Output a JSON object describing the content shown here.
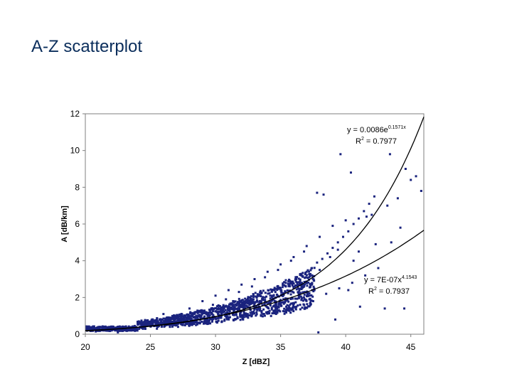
{
  "slide": {
    "title": "A-Z scatterplot"
  },
  "chart_data": {
    "type": "scatter",
    "title": "",
    "xlabel": "Z [dBZ]",
    "ylabel": "A [dB/km]",
    "xlim": [
      20,
      46
    ],
    "ylim": [
      0,
      12
    ],
    "x_ticks": [
      "20",
      "25",
      "30",
      "35",
      "40",
      "45"
    ],
    "y_ticks": [
      "0",
      "2",
      "4",
      "6",
      "8",
      "10",
      "12"
    ],
    "grid": false,
    "colors": {
      "points": "#1a237e",
      "trendlines": "#000000",
      "frame": "#7f7f7f"
    },
    "series": [
      {
        "values": [
          [
            20.3,
            0.25
          ],
          [
            20.6,
            0.3
          ],
          [
            21.0,
            0.25
          ],
          [
            21.4,
            0.3
          ],
          [
            21.8,
            0.28
          ],
          [
            22.2,
            0.35
          ],
          [
            22.6,
            0.3
          ],
          [
            23.0,
            0.4
          ],
          [
            23.4,
            0.35
          ],
          [
            23.8,
            0.45
          ],
          [
            24.2,
            0.4
          ],
          [
            24.6,
            0.5
          ],
          [
            25.0,
            0.45
          ],
          [
            25.4,
            0.55
          ],
          [
            25.8,
            0.6
          ],
          [
            26.2,
            0.55
          ],
          [
            26.6,
            0.65
          ],
          [
            27.0,
            0.7
          ],
          [
            27.4,
            0.65
          ],
          [
            27.8,
            0.8
          ],
          [
            28.2,
            0.75
          ],
          [
            28.6,
            0.9
          ],
          [
            29.0,
            0.85
          ],
          [
            29.4,
            1.0
          ],
          [
            29.8,
            0.95
          ],
          [
            30.2,
            1.1
          ],
          [
            30.6,
            1.2
          ],
          [
            31.0,
            1.3
          ],
          [
            31.4,
            1.25
          ],
          [
            31.8,
            1.4
          ],
          [
            32.2,
            1.5
          ],
          [
            32.6,
            1.6
          ],
          [
            33.0,
            1.7
          ],
          [
            33.4,
            1.8
          ],
          [
            33.8,
            2.0
          ],
          [
            34.2,
            2.1
          ],
          [
            34.6,
            2.3
          ],
          [
            35.0,
            2.5
          ],
          [
            35.4,
            2.6
          ],
          [
            35.8,
            2.8
          ],
          [
            36.2,
            3.0
          ],
          [
            36.6,
            3.2
          ],
          [
            37.0,
            3.4
          ],
          [
            37.4,
            3.6
          ],
          [
            37.8,
            3.9
          ],
          [
            38.2,
            4.1
          ],
          [
            38.6,
            4.4
          ],
          [
            39.0,
            4.7
          ],
          [
            39.4,
            5.0
          ],
          [
            39.8,
            5.3
          ],
          [
            40.2,
            5.6
          ],
          [
            40.6,
            6.0
          ],
          [
            41.0,
            6.3
          ],
          [
            41.4,
            6.7
          ],
          [
            41.8,
            7.1
          ],
          [
            42.2,
            7.5
          ],
          [
            22.5,
            0.1
          ],
          [
            24.0,
            0.2
          ],
          [
            25.5,
            0.3
          ],
          [
            26.5,
            0.4
          ],
          [
            27.5,
            0.5
          ],
          [
            28.5,
            0.5
          ],
          [
            29.5,
            0.6
          ],
          [
            30.5,
            0.7
          ],
          [
            31.5,
            0.8
          ],
          [
            32.5,
            0.9
          ],
          [
            33.5,
            1.0
          ],
          [
            34.5,
            1.2
          ],
          [
            35.5,
            1.4
          ],
          [
            36.5,
            1.6
          ],
          [
            37.5,
            1.8
          ],
          [
            38.5,
            2.2
          ],
          [
            39.5,
            2.5
          ],
          [
            40.5,
            2.8
          ],
          [
            41.5,
            3.2
          ],
          [
            42.5,
            3.6
          ],
          [
            26.0,
            1.1
          ],
          [
            28.0,
            1.4
          ],
          [
            29.0,
            1.8
          ],
          [
            30.0,
            2.1
          ],
          [
            31.0,
            2.4
          ],
          [
            32.0,
            2.7
          ],
          [
            33.0,
            3.0
          ],
          [
            34.0,
            3.4
          ],
          [
            35.0,
            3.8
          ],
          [
            36.0,
            4.2
          ],
          [
            37.0,
            4.8
          ],
          [
            38.0,
            5.3
          ],
          [
            39.0,
            5.9
          ],
          [
            40.0,
            6.2
          ],
          [
            29.8,
            1.6
          ],
          [
            30.8,
            1.9
          ],
          [
            31.8,
            2.3
          ],
          [
            32.8,
            2.6
          ],
          [
            33.8,
            3.1
          ],
          [
            34.8,
            3.5
          ],
          [
            35.8,
            4.0
          ],
          [
            36.8,
            4.5
          ],
          [
            37.8,
            7.7
          ],
          [
            38.3,
            7.6
          ],
          [
            39.6,
            9.8
          ],
          [
            40.4,
            8.8
          ],
          [
            41.6,
            6.4
          ],
          [
            42.0,
            6.5
          ],
          [
            43.2,
            7.0
          ],
          [
            43.4,
            9.8
          ],
          [
            44.0,
            7.4
          ],
          [
            44.6,
            9.0
          ],
          [
            45.0,
            8.4
          ],
          [
            45.4,
            8.6
          ],
          [
            45.8,
            7.8
          ],
          [
            40.2,
            2.4
          ],
          [
            41.1,
            1.5
          ],
          [
            43.0,
            1.4
          ],
          [
            44.5,
            1.4
          ],
          [
            39.2,
            0.8
          ],
          [
            37.9,
            0.1
          ],
          [
            40.6,
            4.0
          ],
          [
            41.0,
            4.5
          ],
          [
            42.3,
            4.9
          ],
          [
            43.5,
            5.0
          ],
          [
            44.2,
            5.8
          ],
          [
            36.0,
            2.5
          ],
          [
            36.5,
            2.9
          ],
          [
            37.2,
            3.1
          ],
          [
            38.0,
            3.5
          ],
          [
            38.8,
            4.2
          ],
          [
            39.4,
            4.6
          ],
          [
            20.8,
            0.15
          ],
          [
            21.6,
            0.2
          ],
          [
            22.4,
            0.22
          ],
          [
            23.2,
            0.28
          ],
          [
            24.4,
            0.33
          ],
          [
            25.6,
            0.42
          ],
          [
            26.8,
            0.5
          ],
          [
            28.0,
            0.62
          ],
          [
            29.2,
            0.78
          ],
          [
            30.4,
            0.9
          ],
          [
            31.6,
            1.05
          ],
          [
            32.8,
            1.2
          ],
          [
            34.0,
            1.45
          ],
          [
            35.2,
            1.75
          ],
          [
            36.4,
            2.05
          ],
          [
            37.6,
            2.4
          ]
        ]
      }
    ],
    "trendlines": [
      {
        "equation": "y = 0.0086e",
        "exponent": "0.1571x",
        "r2_label": "R",
        "r2_exp": "2",
        "r2_value": " = 0.7977",
        "type": "exponential",
        "a": 0.0086,
        "b": 0.1571
      },
      {
        "equation": "y = 7E-07x",
        "exponent": "4.1543",
        "r2_label": "R",
        "r2_exp": "2",
        "r2_value": " = 0.7937",
        "type": "power",
        "a": 7e-07,
        "b": 4.1543
      }
    ]
  }
}
